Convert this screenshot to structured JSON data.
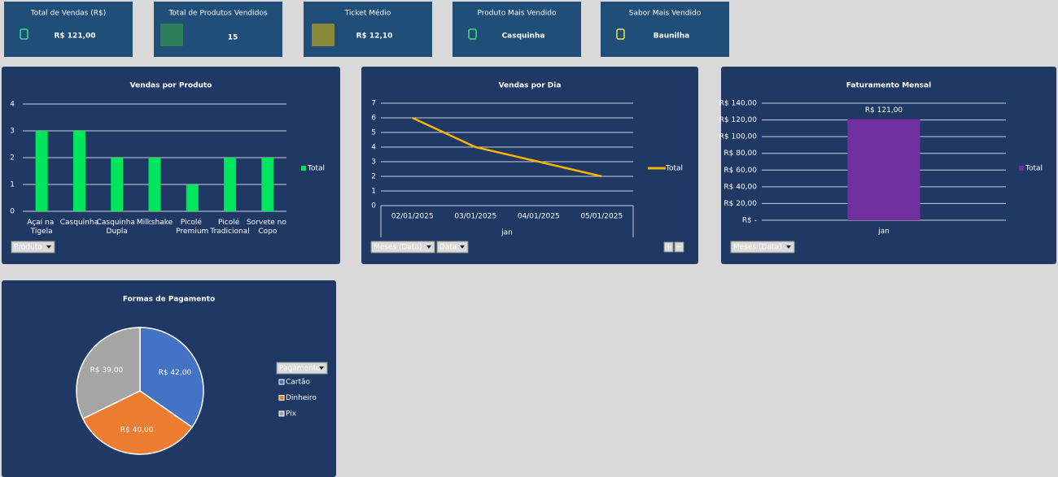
{
  "kpis": [
    {
      "label": "Total de Vendas (R$)",
      "value": "R$ 121,00"
    },
    {
      "label": "Total de Produtos Vendidos",
      "value": "15"
    },
    {
      "label": "Ticket Médio",
      "value": "R$ 12,10"
    },
    {
      "label": "Produto Mais Vendido",
      "value": "Casquinha"
    },
    {
      "label": "Sabor Mais Vendido",
      "value": "Baunilha"
    }
  ],
  "chart_data": [
    {
      "type": "bar",
      "title": "Vendas por Produto",
      "categories": [
        "Açaí na Tigela",
        "Casquinha",
        "Casquinha Dupla",
        "Milkshake",
        "Picolé Premium",
        "Picolé Tradicional",
        "Sorvete no Copo"
      ],
      "series": [
        {
          "name": "Total",
          "color": "#00e65c",
          "values": [
            3,
            3,
            2,
            2,
            1,
            2,
            2
          ]
        }
      ],
      "ylim": [
        0,
        4
      ],
      "yticks": [
        0,
        1,
        2,
        3,
        4
      ],
      "grid": true,
      "legend": "right",
      "filters": [
        "Produto"
      ]
    },
    {
      "type": "line",
      "title": "Vendas por Dia",
      "categories": [
        "02/01/2025",
        "03/01/2025",
        "04/01/2025",
        "05/01/2025"
      ],
      "group_label": "jan",
      "series": [
        {
          "name": "Total",
          "color": "#f5b400",
          "values": [
            6,
            4,
            3,
            2
          ]
        }
      ],
      "ylim": [
        0,
        7
      ],
      "yticks": [
        0,
        1,
        2,
        3,
        4,
        5,
        6,
        7
      ],
      "grid": true,
      "legend": "right",
      "filters": [
        "Meses (Data)",
        "Data"
      ],
      "buttons": [
        "+",
        "−"
      ]
    },
    {
      "type": "bar",
      "title": "Faturamento Mensal",
      "categories": [
        "jan"
      ],
      "series": [
        {
          "name": "Total",
          "color": "#7030a0",
          "values": [
            121
          ],
          "value_labels": [
            "R$ 121,00"
          ]
        }
      ],
      "ylim": [
        0,
        140
      ],
      "yticks": [
        {
          "value": 0,
          "label": "R$ -"
        },
        {
          "value": 20,
          "label": "R$ 20,00"
        },
        {
          "value": 40,
          "label": "R$ 40,00"
        },
        {
          "value": 60,
          "label": "R$ 60,00"
        },
        {
          "value": 80,
          "label": "R$ 80,00"
        },
        {
          "value": 100,
          "label": "R$ 100,00"
        },
        {
          "value": 120,
          "label": "R$ 120,00"
        },
        {
          "value": 140,
          "label": "R$ 140,00"
        }
      ],
      "grid": true,
      "legend": "right",
      "filters": [
        "Meses (Data)"
      ]
    },
    {
      "type": "pie",
      "title": "Formas de Pagamento",
      "categories": [
        "Cartão",
        "Dinheiro",
        "Pix"
      ],
      "values": [
        42,
        40,
        39
      ],
      "value_labels": [
        "R$ 42,00",
        "R$ 40,00",
        "R$ 39,00"
      ],
      "colors": [
        "#4472c4",
        "#ed7d31",
        "#a5a5a5"
      ],
      "legend_title": "Pagamento",
      "legend": "right"
    }
  ]
}
